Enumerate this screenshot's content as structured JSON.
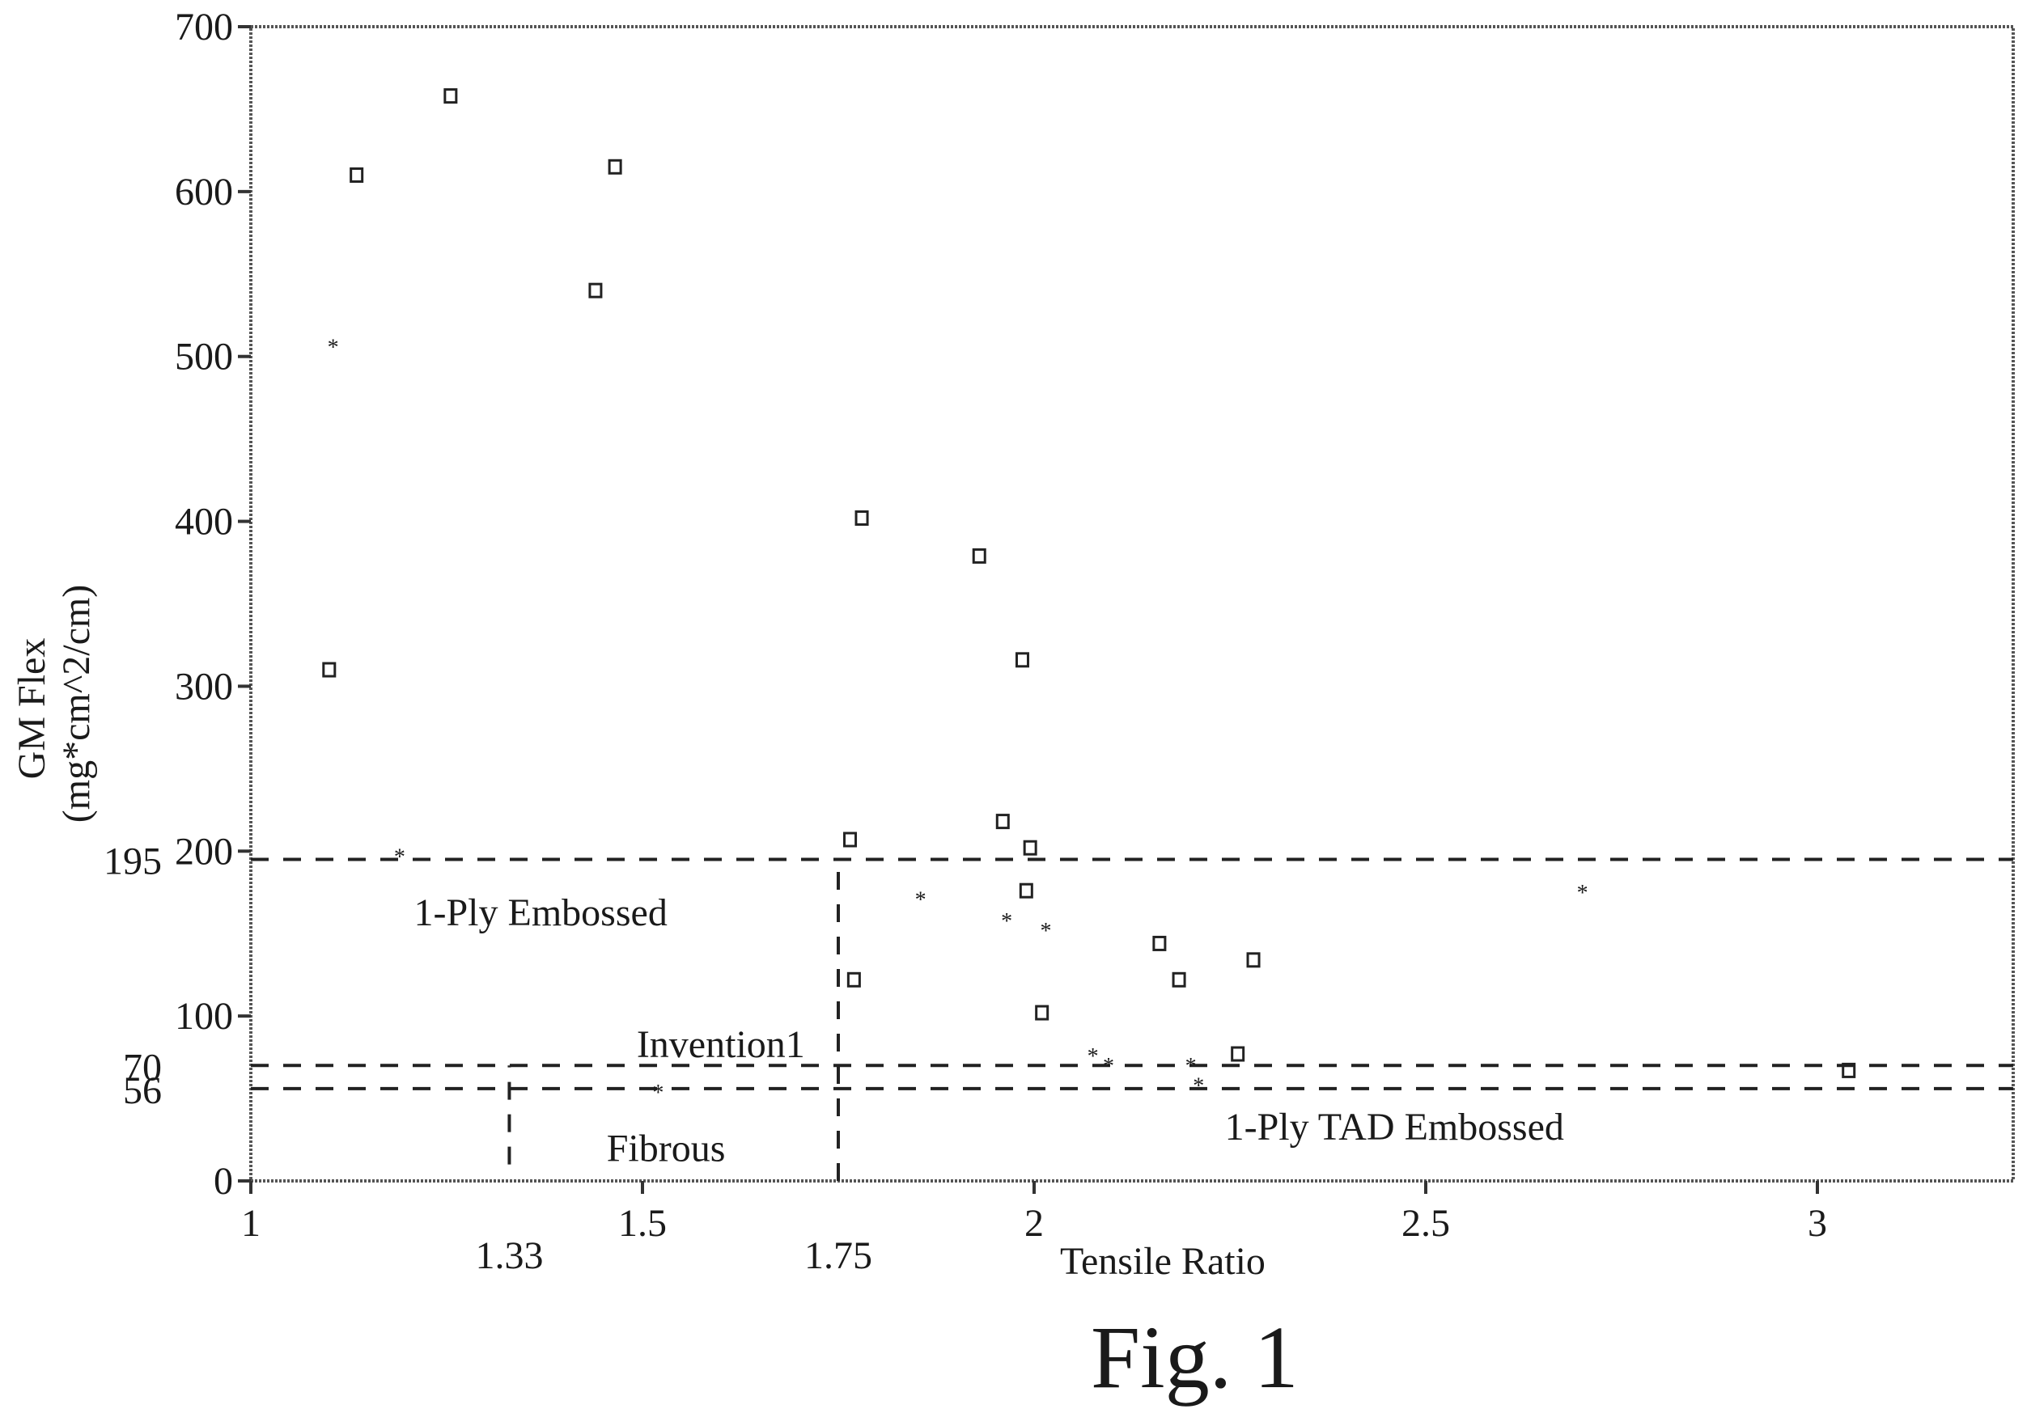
{
  "figure_caption": "Fig. 1",
  "chart_data": {
    "type": "scatter",
    "xlabel": "Tensile Ratio",
    "ylabel_line1": "GM Flex",
    "ylabel_line2": "(mg*cm^2/cm)",
    "xlim": [
      1,
      3.25
    ],
    "ylim": [
      0,
      700
    ],
    "x_ticks": [
      1,
      1.5,
      2,
      2.5,
      3
    ],
    "y_ticks": [
      0,
      100,
      200,
      300,
      400,
      500,
      600,
      700
    ],
    "extra_x_ticks": [
      1.33,
      1.75
    ],
    "extra_y_ticks": [
      56,
      70,
      195
    ],
    "grid": false,
    "reference_lines": [
      {
        "orientation": "horizontal",
        "value": 195,
        "from": 1,
        "to": 3.25
      },
      {
        "orientation": "horizontal",
        "value": 70,
        "from": 1,
        "to": 3.25
      },
      {
        "orientation": "horizontal",
        "value": 56,
        "from": 1,
        "to": 3.25
      },
      {
        "orientation": "vertical",
        "value": 1.75,
        "from": 0,
        "to": 195
      },
      {
        "orientation": "vertical",
        "value": 1.33,
        "from": 10,
        "to": 70
      }
    ],
    "region_labels": [
      {
        "text": "1-Ply Embossed",
        "x": 1.37,
        "y": 155
      },
      {
        "text": "Invention1",
        "x": 1.6,
        "y": 75
      },
      {
        "text": "Fibrous",
        "x": 1.53,
        "y": 12
      },
      {
        "text": "1-Ply TAD Embossed",
        "x": 2.46,
        "y": 25
      }
    ],
    "series": [
      {
        "marker": "square",
        "points": [
          [
            1.1,
            310
          ],
          [
            1.135,
            610
          ],
          [
            1.255,
            658
          ],
          [
            1.44,
            540
          ],
          [
            1.465,
            615
          ],
          [
            1.765,
            207
          ],
          [
            1.77,
            122
          ],
          [
            1.78,
            402
          ],
          [
            1.93,
            379
          ],
          [
            1.96,
            218
          ],
          [
            1.985,
            316
          ],
          [
            1.99,
            176
          ],
          [
            1.995,
            202
          ],
          [
            2.01,
            102
          ],
          [
            2.16,
            144
          ],
          [
            2.185,
            122
          ],
          [
            2.26,
            77
          ],
          [
            2.28,
            134
          ],
          [
            3.04,
            67
          ]
        ]
      },
      {
        "marker": "small-star",
        "points": [
          [
            1.105,
            508
          ],
          [
            1.19,
            199
          ],
          [
            1.52,
            56
          ],
          [
            1.855,
            173
          ],
          [
            1.965,
            160
          ],
          [
            2.015,
            154
          ],
          [
            2.075,
            78
          ],
          [
            2.095,
            72
          ],
          [
            2.2,
            72
          ],
          [
            2.21,
            60
          ],
          [
            2.7,
            177
          ]
        ]
      }
    ]
  }
}
